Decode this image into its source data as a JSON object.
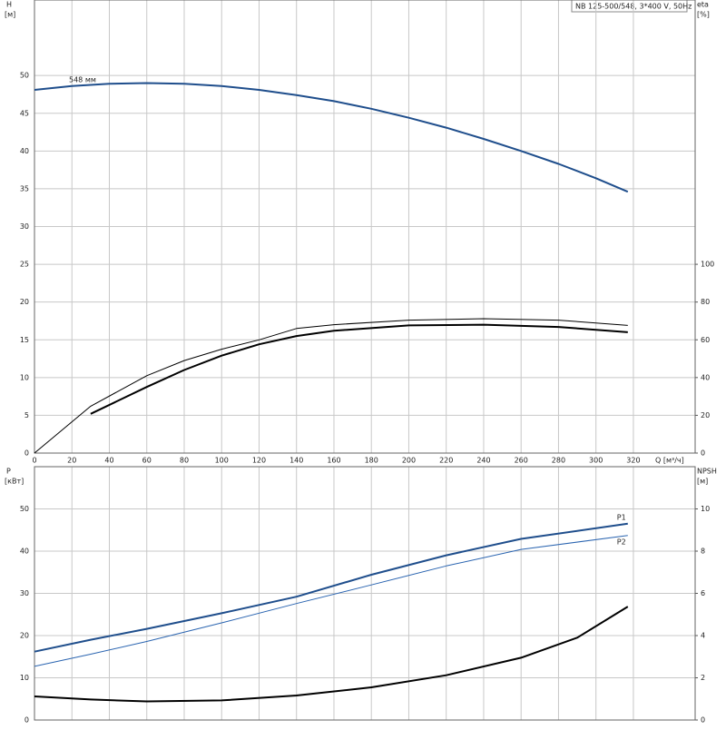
{
  "chart_data": [
    {
      "type": "line",
      "title": "NB 125-500/548, 3*400 V, 50Hz",
      "ylabel": "H",
      "ylabel_unit": "[м]",
      "y2label": "eta",
      "y2label_unit": "[%]",
      "xlabel": "Q [м³/ч]",
      "xlim": [
        0,
        353
      ],
      "xticks": [
        0,
        20,
        40,
        60,
        80,
        100,
        120,
        140,
        160,
        180,
        200,
        220,
        240,
        260,
        280,
        300,
        320
      ],
      "ylim": [
        0,
        60
      ],
      "yticks": [
        0,
        5,
        10,
        15,
        20,
        25,
        30,
        35,
        40,
        45,
        50
      ],
      "y2lim": [
        0,
        240
      ],
      "y2ticks": [
        0,
        20,
        40,
        60,
        80,
        100
      ],
      "grid": true,
      "series": [
        {
          "name": "548 мм",
          "color": "#1f4e8c",
          "width": 2,
          "x": [
            0,
            20,
            40,
            60,
            80,
            100,
            120,
            140,
            160,
            180,
            200,
            220,
            240,
            260,
            280,
            300,
            317
          ],
          "values": [
            48.1,
            48.6,
            48.9,
            49.0,
            48.9,
            48.6,
            48.1,
            47.4,
            46.6,
            45.6,
            44.4,
            43.1,
            41.6,
            40.0,
            38.3,
            36.4,
            34.6
          ]
        },
        {
          "color": "#000000",
          "width": 1,
          "axis": "y2",
          "x": [
            0,
            30,
            60,
            80,
            100,
            120,
            140,
            160,
            200,
            240,
            280,
            317
          ],
          "values": [
            0,
            24.8,
            41,
            49,
            55,
            60,
            66,
            68,
            70.4,
            71.2,
            70.4,
            67.6
          ]
        },
        {
          "color": "#000000",
          "width": 2,
          "axis": "y2",
          "x": [
            30,
            60,
            80,
            100,
            120,
            140,
            160,
            200,
            240,
            280,
            317
          ],
          "values": [
            20.8,
            35,
            44,
            51.6,
            57.6,
            62,
            64.8,
            67.6,
            68,
            66.8,
            64
          ]
        }
      ]
    },
    {
      "type": "line",
      "ylabel": "P",
      "ylabel_unit": "[кВт]",
      "y2label": "NPSH",
      "y2label_unit": "[м]",
      "xlim": [
        0,
        353
      ],
      "ylim": [
        0,
        60
      ],
      "yticks": [
        0,
        10,
        20,
        30,
        40,
        50
      ],
      "y2lim": [
        0,
        12
      ],
      "y2ticks": [
        0,
        2,
        4,
        6,
        8,
        10
      ],
      "grid": true,
      "series": [
        {
          "name": "P1",
          "color": "#1f4e8c",
          "width": 2,
          "x": [
            0,
            30,
            60,
            100,
            140,
            180,
            220,
            260,
            317
          ],
          "values": [
            16.2,
            19,
            21.6,
            25.3,
            29.2,
            34.4,
            39.0,
            42.9,
            46.5
          ]
        },
        {
          "name": "P2",
          "color": "#2a64b0",
          "width": 1,
          "x": [
            0,
            30,
            60,
            100,
            140,
            180,
            220,
            260,
            317
          ],
          "values": [
            12.7,
            15.6,
            18.6,
            23.0,
            27.6,
            32,
            36.5,
            40.4,
            43.7
          ]
        },
        {
          "color": "#000000",
          "width": 2,
          "axis": "y2",
          "x": [
            0,
            30,
            60,
            100,
            140,
            180,
            220,
            260,
            290,
            317
          ],
          "values": [
            1.12,
            0.97,
            0.88,
            0.93,
            1.16,
            1.55,
            2.12,
            2.95,
            3.9,
            5.37
          ]
        }
      ]
    }
  ]
}
